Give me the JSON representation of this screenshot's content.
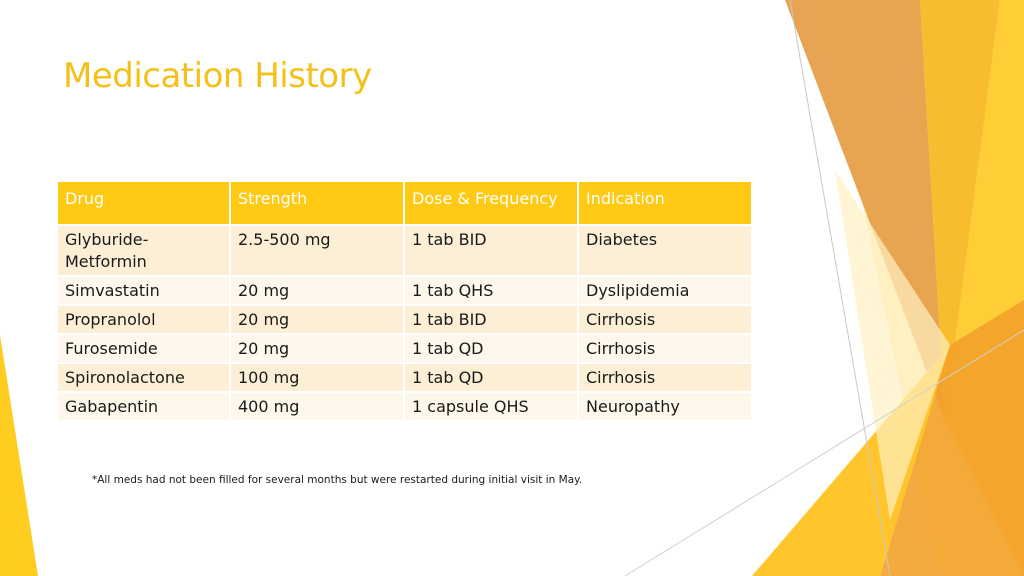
{
  "slide": {
    "title": "Medication History",
    "footnote": "*All meds had not been filled for several months but were restarted during initial visit in May."
  },
  "colors": {
    "accent": "#F6C01A",
    "header_fill": "#FFC914",
    "row_band_1": "#FCEFD6",
    "row_band_2": "#FEF8EC",
    "decor_orange": "#F0A030",
    "decor_yellow": "#FFD23C"
  },
  "table": {
    "headers": {
      "drug": "Drug",
      "strength": "Strength",
      "dose": "Dose & Frequency",
      "indication": "Indication"
    },
    "rows": [
      {
        "drug": "Glyburide-Metformin",
        "strength": "2.5-500 mg",
        "dose": "1 tab BID",
        "indication": "Diabetes"
      },
      {
        "drug": "Simvastatin",
        "strength": "20 mg",
        "dose": "1 tab QHS",
        "indication": "Dyslipidemia"
      },
      {
        "drug": "Propranolol",
        "strength": "20 mg",
        "dose": "1 tab BID",
        "indication": "Cirrhosis"
      },
      {
        "drug": "Furosemide",
        "strength": "20 mg",
        "dose": "1 tab QD",
        "indication": "Cirrhosis"
      },
      {
        "drug": "Spironolactone",
        "strength": "100 mg",
        "dose": "1 tab QD",
        "indication": "Cirrhosis"
      },
      {
        "drug": "Gabapentin",
        "strength": "400 mg",
        "dose": "1 capsule QHS",
        "indication": "Neuropathy"
      }
    ]
  }
}
